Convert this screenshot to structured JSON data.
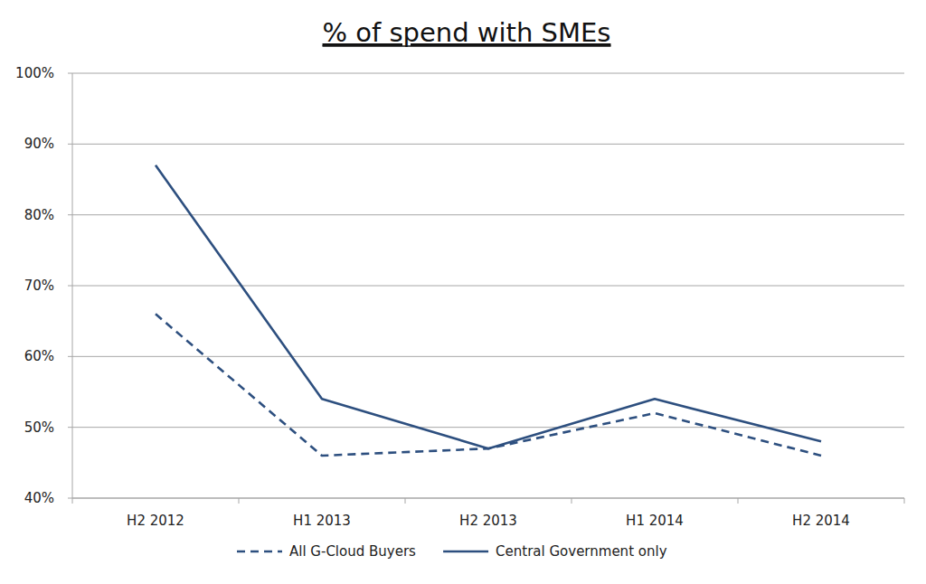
{
  "chart_data": {
    "type": "line",
    "title": "% of spend with SMEs",
    "categories": [
      "H2 2012",
      "H1 2013",
      "H2 2013",
      "H1 2014",
      "H2 2014"
    ],
    "series": [
      {
        "name": "All G-Cloud Buyers",
        "color": "#2d4f7f",
        "line_style": "dashed",
        "values": [
          66,
          46,
          47,
          52,
          46
        ]
      },
      {
        "name": "Central Government only",
        "color": "#2d4f7f",
        "line_style": "solid",
        "values": [
          87,
          54,
          47,
          54,
          48
        ]
      }
    ],
    "ylim": [
      40,
      100
    ],
    "yticks": [
      {
        "value": 40,
        "label": "40%"
      },
      {
        "value": 50,
        "label": "50%"
      },
      {
        "value": 60,
        "label": "60%"
      },
      {
        "value": 70,
        "label": "70%"
      },
      {
        "value": 80,
        "label": "80%"
      },
      {
        "value": 90,
        "label": "90%"
      },
      {
        "value": 100,
        "label": "100%"
      }
    ],
    "grid": true,
    "legend": "bottom"
  }
}
